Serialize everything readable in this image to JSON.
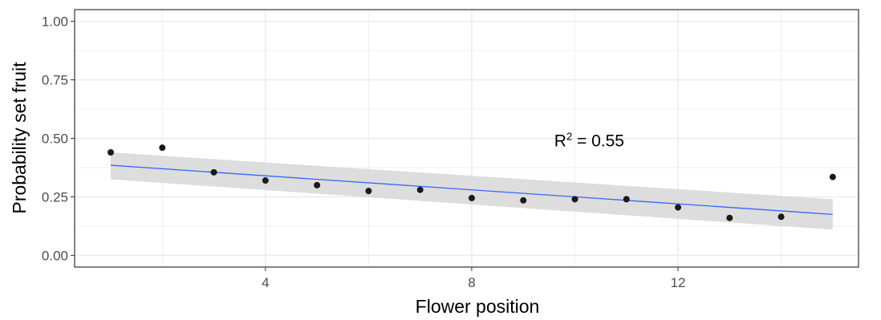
{
  "chart_data": {
    "type": "scatter",
    "xlabel": "Flower position",
    "ylabel": "Probability set fruit",
    "xlim": [
      0.3,
      15.5
    ],
    "ylim": [
      -0.05,
      1.05
    ],
    "x_ticks": [
      4,
      8,
      12
    ],
    "y_ticks": [
      0.0,
      0.25,
      0.5,
      0.75,
      1.0
    ],
    "x_tick_labels": [
      "4",
      "8",
      "12"
    ],
    "y_tick_labels": [
      "0.00",
      "0.25",
      "0.50",
      "0.75",
      "1.00"
    ],
    "grid": true,
    "legend": "none",
    "points": [
      {
        "x": 1,
        "y": 0.44
      },
      {
        "x": 2,
        "y": 0.46
      },
      {
        "x": 3,
        "y": 0.355
      },
      {
        "x": 4,
        "y": 0.32
      },
      {
        "x": 5,
        "y": 0.3
      },
      {
        "x": 6,
        "y": 0.275
      },
      {
        "x": 7,
        "y": 0.28
      },
      {
        "x": 8,
        "y": 0.245
      },
      {
        "x": 9,
        "y": 0.235
      },
      {
        "x": 10,
        "y": 0.24
      },
      {
        "x": 11,
        "y": 0.24
      },
      {
        "x": 12,
        "y": 0.205
      },
      {
        "x": 13,
        "y": 0.16
      },
      {
        "x": 14,
        "y": 0.165
      },
      {
        "x": 15,
        "y": 0.335
      }
    ],
    "fit": {
      "type": "linear",
      "x": [
        1,
        15
      ],
      "y": [
        0.385,
        0.175
      ],
      "ci_lower": [
        0.325,
        0.11
      ],
      "ci_upper": [
        0.44,
        0.24
      ]
    },
    "annotation": {
      "text": "R",
      "superscript": "2",
      "value_text": " = 0.55",
      "x": 9.6,
      "y": 0.49
    },
    "colors": {
      "points": "#1a1a1a",
      "fit_line": "#3366ff",
      "ci_band": "#d9d9d9",
      "grid": "#ebebeb",
      "panel_border": "#333333"
    }
  }
}
